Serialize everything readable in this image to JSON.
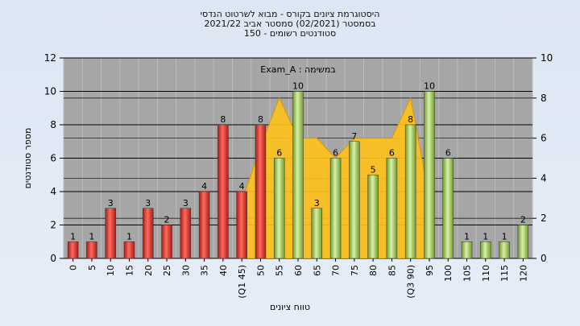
{
  "header": {
    "title_line1": "היסטוגרמת ציונים בקורס - מבוא לשרטוט הנדסי",
    "title_line2": "בסמסטר  (02/2021)  סמסטר אביב 2021/22",
    "title_line3": "סטודנטים רשומים - 150"
  },
  "colors": {
    "plot_bg": "#a6a6a6",
    "red_bar": "#e0302a",
    "green_bar": "#9fc957",
    "area_fill": "#ffc21a",
    "background": "#dde6f4"
  },
  "chart_data": {
    "type": "bar",
    "categories": [
      "0",
      "5",
      "10",
      "15",
      "20",
      "25",
      "30",
      "35",
      "40",
      "(Q1 45)",
      "50",
      "55",
      "60",
      "65",
      "70",
      "75",
      "80",
      "85",
      "(Q3 90)",
      "95",
      "100",
      "105",
      "110",
      "115",
      "120"
    ],
    "values": [
      1,
      1,
      3,
      1,
      3,
      2,
      3,
      4,
      8,
      4,
      8,
      6,
      10,
      3,
      6,
      7,
      5,
      6,
      8,
      10,
      6,
      1,
      1,
      1,
      2
    ],
    "bar_colors": [
      "red",
      "red",
      "red",
      "red",
      "red",
      "red",
      "red",
      "red",
      "red",
      "red",
      "red",
      "green",
      "green",
      "green",
      "green",
      "green",
      "green",
      "green",
      "green",
      "green",
      "green",
      "green",
      "green",
      "green",
      "green"
    ],
    "area_series": {
      "name": "Exam_A : במשימה",
      "x": [
        "(Q1 45)",
        "50",
        "55",
        "60",
        "65",
        "70",
        "75",
        "80",
        "85",
        "(Q3 90)",
        "95"
      ],
      "values": [
        2.8,
        5.6,
        8.0,
        6.0,
        6.0,
        5.0,
        6.0,
        6.0,
        6.0,
        8.0,
        3.0
      ]
    },
    "xlabel": "טווח ציונים",
    "ylabel": "מספר סטודנטים",
    "ylim": [
      0,
      12
    ],
    "yticks": [
      0,
      2,
      4,
      6,
      8,
      10,
      12
    ],
    "y2lim": [
      0,
      10
    ],
    "y2ticks": [
      0,
      2,
      4,
      6,
      8,
      10
    ],
    "grid": "horizontal"
  }
}
